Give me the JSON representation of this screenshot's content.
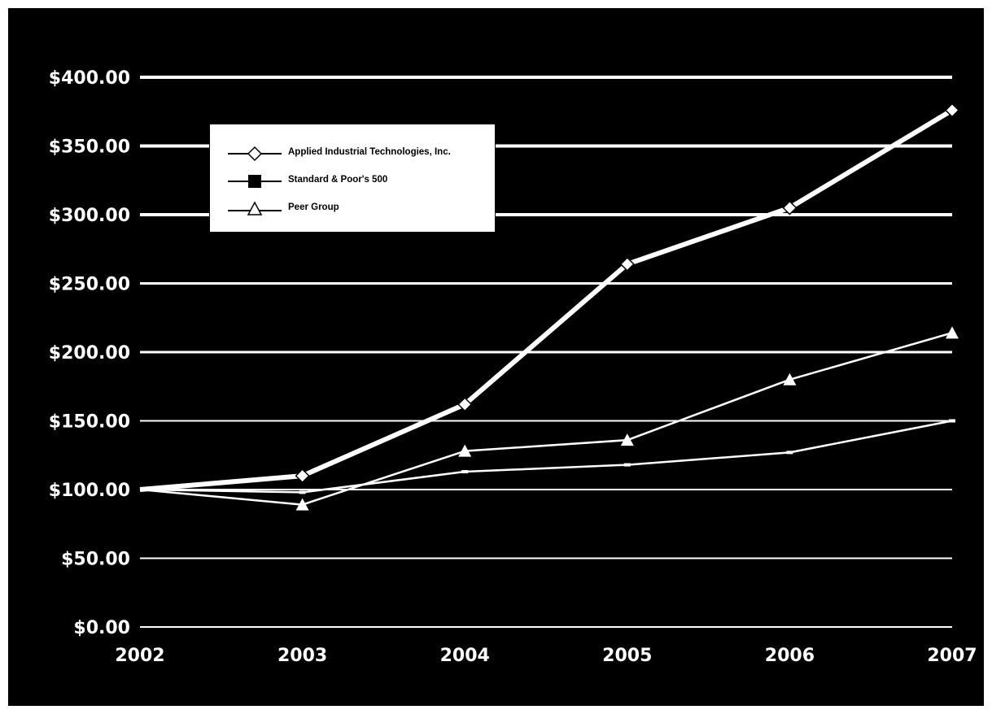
{
  "colors": {
    "background": "#000000",
    "foreground": "#ffffff",
    "legend_bg": "#ffffff",
    "legend_text": "#000000"
  },
  "legend": {
    "placement": "top-left",
    "items": [
      {
        "label": "Applied Industrial Technologies, Inc.",
        "marker": "diamond-icon"
      },
      {
        "label": "Standard & Poor's 500",
        "marker": "square-icon"
      },
      {
        "label": "Peer Group",
        "marker": "triangle-icon"
      }
    ]
  },
  "chart_data": {
    "type": "line",
    "title": "",
    "xlabel": "",
    "ylabel": "",
    "grid": true,
    "x": [
      "2002",
      "2003",
      "2004",
      "2005",
      "2006",
      "2007"
    ],
    "ylim": [
      0,
      400
    ],
    "yticks": [
      "$0.00",
      "$50.00",
      "$100.00",
      "$150.00",
      "$200.00",
      "$250.00",
      "$300.00",
      "$350.00",
      "$400.00"
    ],
    "series": [
      {
        "name": "Applied Industrial Technologies, Inc.",
        "marker": "diamond",
        "values": [
          100,
          110,
          162,
          264,
          305,
          376
        ]
      },
      {
        "name": "Standard & Poor's 500",
        "marker": "square",
        "values": [
          100,
          98,
          113,
          118,
          127,
          150
        ]
      },
      {
        "name": "Peer Group",
        "marker": "triangle",
        "values": [
          100,
          89,
          128,
          136,
          180,
          214
        ]
      }
    ]
  }
}
